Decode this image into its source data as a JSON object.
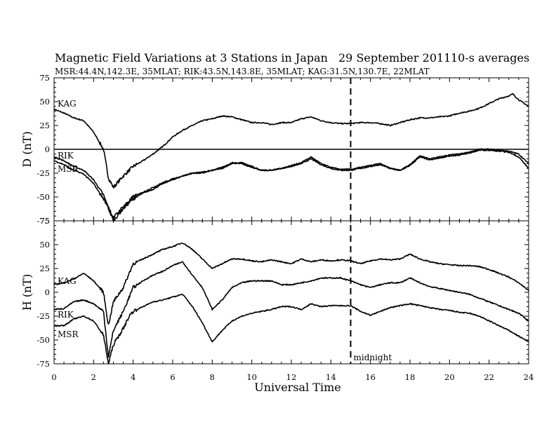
{
  "header": {
    "title": "Magnetic Field Variations at 3 Stations in Japan",
    "date": "29 September 2011",
    "averaging": "10-s averages",
    "stations_line": "MSR:44.4N,142.3E, 35MLAT;  RIK:43.5N,143.8E, 35MLAT;  KAG:31.5N,130.7E, 22MLAT"
  },
  "chart_data": {
    "type": "line",
    "xlabel": "Universal Time",
    "xlim": [
      0,
      24
    ],
    "x_ticks": [
      "0",
      "2",
      "4",
      "6",
      "8",
      "10",
      "12",
      "14",
      "16",
      "18",
      "20",
      "22",
      "24"
    ],
    "annotation": {
      "x": 15,
      "label": "midnight",
      "style": "dashed"
    },
    "panels": [
      {
        "ylabel": "D (nT)",
        "ylim": [
          -75,
          75
        ],
        "y_ticks": [
          "75",
          "50",
          "25",
          "0",
          "-25",
          "-50",
          "-75"
        ],
        "zero_line": true,
        "series": [
          {
            "name": "KAG",
            "x": [
              0,
              0.5,
              1,
              1.5,
              2,
              2.5,
              2.75,
              3,
              3.5,
              4,
              4.5,
              5,
              5.5,
              6,
              6.5,
              7,
              7.5,
              8,
              8.5,
              9,
              9.5,
              10,
              10.5,
              11,
              11.5,
              12,
              12.5,
              13,
              13.5,
              14,
              14.5,
              15,
              15.5,
              16,
              16.5,
              17,
              17.5,
              18,
              18.5,
              19,
              19.5,
              20,
              20.5,
              21,
              21.5,
              22,
              22.5,
              23,
              23.2,
              23.5,
              24
            ],
            "values": [
              42,
              38,
              33,
              30,
              18,
              0,
              -30,
              -40,
              -28,
              -18,
              -12,
              -5,
              3,
              13,
              20,
              25,
              30,
              32,
              35,
              34,
              31,
              28,
              28,
              26,
              28,
              28,
              32,
              34,
              30,
              28,
              27,
              27,
              28,
              28,
              27,
              25,
              28,
              31,
              33,
              33,
              34,
              35,
              38,
              40,
              43,
              48,
              53,
              56,
              58,
              52,
              45
            ]
          },
          {
            "name": "RIK",
            "x": [
              0,
              0.5,
              1,
              1.5,
              2,
              2.5,
              2.75,
              3,
              3.5,
              4,
              4.5,
              5,
              5.5,
              6,
              6.5,
              7,
              7.5,
              8,
              8.5,
              9,
              9.5,
              10,
              10.5,
              11,
              11.5,
              12,
              12.5,
              13,
              13.5,
              14,
              14.5,
              15,
              15.5,
              16,
              16.5,
              17,
              17.5,
              18,
              18.5,
              19,
              19.5,
              20,
              20.5,
              21,
              21.5,
              22,
              22.5,
              23,
              23.5,
              24
            ],
            "values": [
              -8,
              -12,
              -18,
              -22,
              -32,
              -48,
              -62,
              -75,
              -62,
              -52,
              -46,
              -42,
              -36,
              -32,
              -28,
              -25,
              -25,
              -22,
              -20,
              -15,
              -14,
              -18,
              -22,
              -22,
              -20,
              -18,
              -15,
              -10,
              -16,
              -20,
              -22,
              -22,
              -20,
              -18,
              -16,
              -20,
              -22,
              -16,
              -7,
              -10,
              -8,
              -6,
              -5,
              -3,
              0,
              0,
              -1,
              -2,
              -5,
              -15
            ]
          },
          {
            "name": "MSR",
            "x": [
              0,
              0.5,
              1,
              1.5,
              2,
              2.5,
              2.75,
              3,
              3.5,
              4,
              4.5,
              5,
              5.5,
              6,
              6.5,
              7,
              7.5,
              8,
              8.5,
              9,
              9.5,
              10,
              10.5,
              11,
              11.5,
              12,
              12.5,
              13,
              13.5,
              14,
              14.5,
              15,
              15.5,
              16,
              16.5,
              17,
              17.5,
              18,
              18.5,
              19,
              19.5,
              20,
              20.5,
              21,
              21.5,
              22,
              22.5,
              23,
              23.5,
              24
            ],
            "values": [
              -12,
              -16,
              -22,
              -26,
              -36,
              -52,
              -60,
              -72,
              -60,
              -50,
              -45,
              -40,
              -35,
              -31,
              -28,
              -25,
              -24,
              -22,
              -19,
              -14,
              -15,
              -19,
              -22,
              -22,
              -20,
              -17,
              -14,
              -8,
              -15,
              -19,
              -21,
              -21,
              -19,
              -17,
              -15,
              -20,
              -22,
              -17,
              -8,
              -11,
              -9,
              -7,
              -6,
              -4,
              -1,
              -1,
              -2,
              -3,
              -8,
              -20
            ]
          }
        ]
      },
      {
        "ylabel": "H (nT)",
        "ylim": [
          -75,
          75
        ],
        "y_ticks": [
          "75",
          "50",
          "25",
          "0",
          "-25",
          "-50",
          "-75"
        ],
        "series": [
          {
            "name": "KAG",
            "x": [
              0,
              0.5,
              1,
              1.5,
              2,
              2.5,
              2.75,
              3,
              3.5,
              3.8,
              4,
              4.5,
              5,
              5.5,
              6,
              6.5,
              7,
              7.5,
              8,
              8.5,
              9,
              9.5,
              10,
              10.5,
              11,
              11.5,
              12,
              12.5,
              13,
              13.5,
              14,
              14.5,
              15,
              15.5,
              16,
              16.5,
              17,
              17.5,
              18,
              18.5,
              19,
              19.5,
              20,
              20.5,
              21,
              21.5,
              22,
              22.5,
              23,
              23.5,
              24
            ],
            "values": [
              8,
              10,
              14,
              20,
              12,
              0,
              -35,
              -10,
              5,
              20,
              30,
              35,
              40,
              45,
              48,
              52,
              45,
              35,
              25,
              30,
              35,
              35,
              33,
              32,
              34,
              32,
              30,
              35,
              32,
              34,
              33,
              34,
              33,
              30,
              33,
              35,
              34,
              35,
              40,
              35,
              32,
              30,
              29,
              28,
              28,
              27,
              24,
              20,
              16,
              10,
              2
            ]
          },
          {
            "name": "RIK",
            "x": [
              0,
              0.5,
              1,
              1.5,
              2,
              2.5,
              2.75,
              3,
              3.5,
              3.8,
              4,
              4.5,
              5,
              5.5,
              6,
              6.5,
              7,
              7.5,
              8,
              8.5,
              9,
              9.5,
              10,
              10.5,
              11,
              11.5,
              12,
              12.5,
              13,
              13.5,
              14,
              14.5,
              15,
              15.5,
              16,
              16.5,
              17,
              17.5,
              18,
              18.5,
              19,
              19.5,
              20,
              20.5,
              21,
              21.5,
              22,
              22.5,
              23,
              23.5,
              24
            ],
            "values": [
              -18,
              -17,
              -10,
              -8,
              -12,
              -20,
              -68,
              -40,
              -20,
              -5,
              5,
              12,
              18,
              22,
              28,
              32,
              18,
              5,
              -18,
              -8,
              5,
              10,
              12,
              12,
              12,
              8,
              8,
              10,
              12,
              15,
              15,
              15,
              12,
              8,
              5,
              8,
              10,
              10,
              15,
              10,
              6,
              4,
              2,
              0,
              -2,
              -6,
              -10,
              -14,
              -18,
              -22,
              -30
            ]
          },
          {
            "name": "MSR",
            "x": [
              0,
              0.5,
              1,
              1.5,
              2,
              2.5,
              2.75,
              3,
              3.5,
              3.8,
              4,
              4.5,
              5,
              5.5,
              6,
              6.5,
              7,
              7.5,
              8,
              8.5,
              9,
              9.5,
              10,
              10.5,
              11,
              11.5,
              12,
              12.5,
              13,
              13.5,
              14,
              14.5,
              15,
              15.5,
              16,
              16.5,
              17,
              17.5,
              18,
              18.5,
              19,
              19.5,
              20,
              20.5,
              21,
              21.5,
              22,
              22.5,
              23,
              23.5,
              24
            ],
            "values": [
              -35,
              -35,
              -28,
              -25,
              -30,
              -45,
              -75,
              -55,
              -38,
              -25,
              -20,
              -15,
              -10,
              -8,
              -5,
              -2,
              -15,
              -32,
              -52,
              -40,
              -30,
              -25,
              -22,
              -20,
              -18,
              -15,
              -15,
              -18,
              -12,
              -15,
              -14,
              -14,
              -14,
              -20,
              -24,
              -20,
              -16,
              -14,
              -12,
              -14,
              -16,
              -18,
              -19,
              -21,
              -22,
              -25,
              -30,
              -35,
              -40,
              -46,
              -52
            ]
          }
        ]
      }
    ]
  }
}
